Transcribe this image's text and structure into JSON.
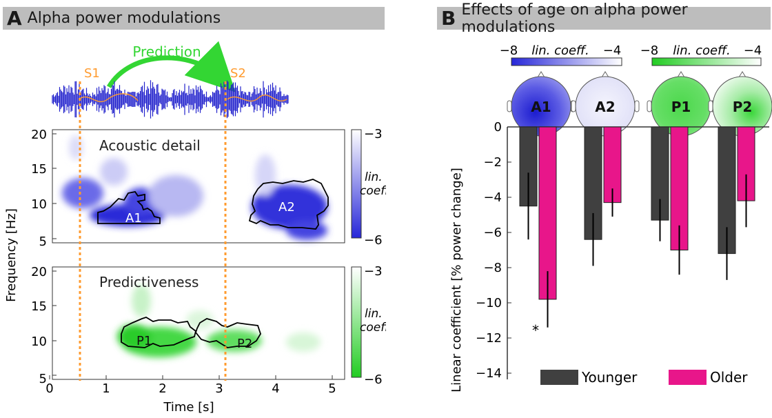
{
  "panel_a": {
    "letter": "A",
    "title": "Alpha power modulations",
    "prediction_label": "Prediction",
    "s1_label": "S1",
    "s2_label": "S2",
    "ylabel": "Frequency [Hz]",
    "xlabel": "Time [s]",
    "x_ticks": [
      "0",
      "1",
      "2",
      "3",
      "4",
      "5"
    ],
    "y_ticks": [
      "5",
      "10",
      "15",
      "20"
    ],
    "top_plot": {
      "title": "Acoustic detail",
      "cluster_labels": [
        "A1",
        "A2"
      ],
      "colorbar_top": "−3",
      "colorbar_bottom": "−6",
      "colorbar_label_1": "lin.",
      "colorbar_label_2": "coeff.",
      "colorbar_color": "#2626d8"
    },
    "bottom_plot": {
      "title": "Predictiveness",
      "cluster_labels": [
        "P1",
        "P2"
      ],
      "colorbar_top": "−3",
      "colorbar_bottom": "−6",
      "colorbar_label_1": "lin.",
      "colorbar_label_2": "coeff.",
      "colorbar_color": "#22cc22"
    },
    "colors": {
      "s_lines": "#ff9b2f",
      "prediction_arrow": "#33d633",
      "waveform": "#2222cc"
    }
  },
  "panel_b": {
    "letter": "B",
    "title": "Effects of age on alpha power modulations",
    "colorbar_blue": {
      "min": "−8",
      "label": "lin. coeff.",
      "max": "−4"
    },
    "colorbar_green": {
      "min": "−8",
      "label": "lin. coeff.",
      "max": "−4"
    },
    "topo_labels": [
      "A1",
      "A2",
      "P1",
      "P2"
    ],
    "significance_marker": "*",
    "legend": [
      "Younger",
      "Older"
    ]
  },
  "chart_data": [
    {
      "type": "bar",
      "title": "Effects of age on alpha power modulations",
      "categories": [
        "A1",
        "A2",
        "P1",
        "P2"
      ],
      "ylabel": "Linear coefficient [% power change]",
      "ylim": [
        -15,
        0
      ],
      "y_ticks": [
        0,
        -2,
        -4,
        -6,
        -8,
        -10,
        -12,
        -14
      ],
      "series": [
        {
          "name": "Younger",
          "color": "#404040",
          "values": [
            -4.5,
            -6.4,
            -5.3,
            -7.2
          ],
          "errors": [
            1.9,
            1.5,
            1.2,
            1.5
          ]
        },
        {
          "name": "Older",
          "color": "#e8168a",
          "values": [
            -9.8,
            -4.3,
            -7.0,
            -4.2
          ],
          "errors": [
            1.6,
            0.8,
            1.4,
            1.5
          ]
        }
      ]
    }
  ]
}
